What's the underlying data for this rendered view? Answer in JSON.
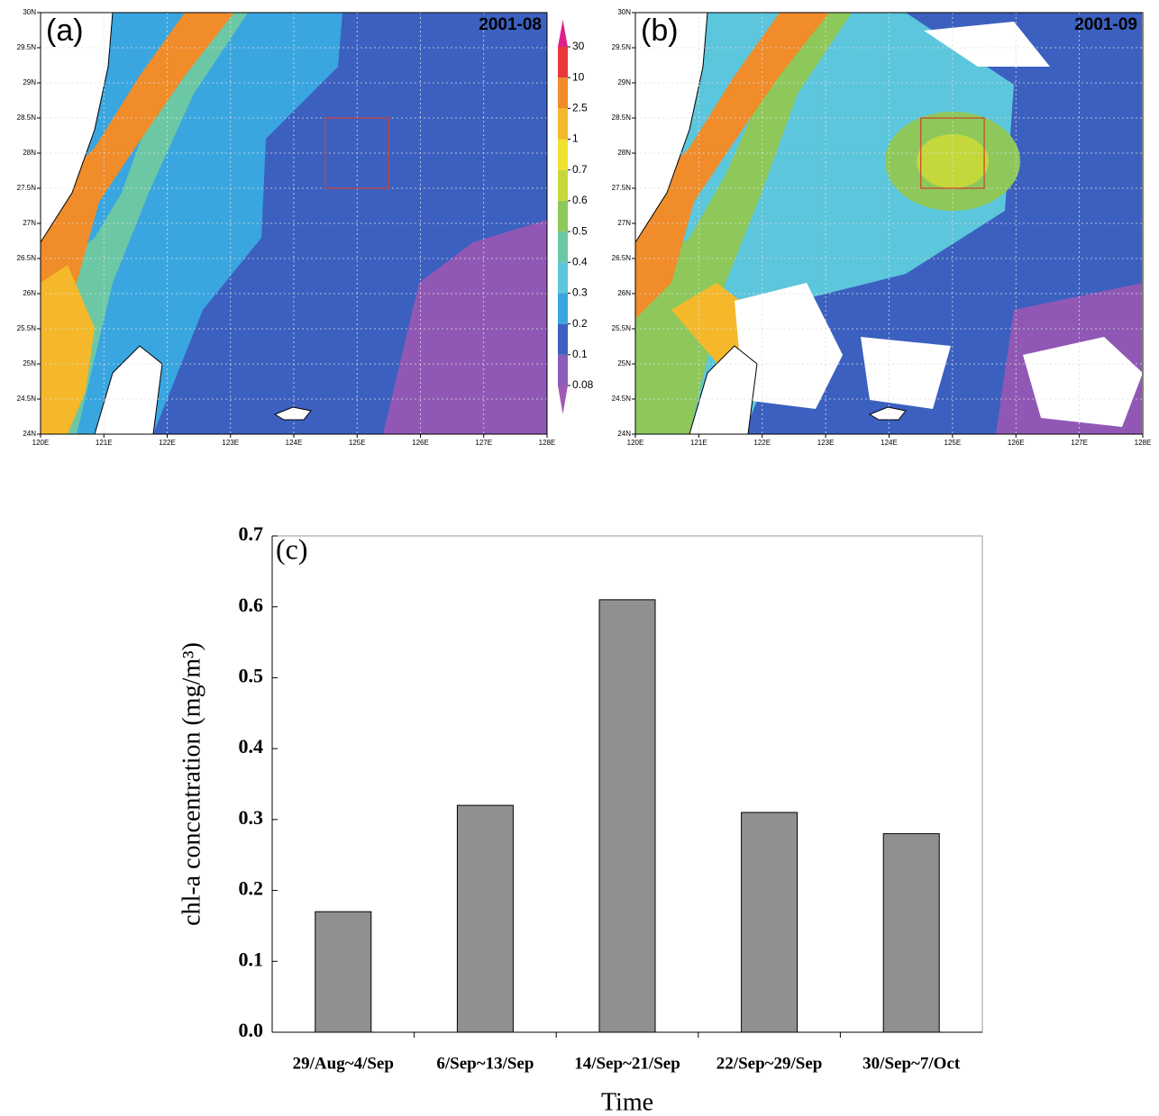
{
  "chart_data": [
    {
      "type": "map",
      "panel": "(a)",
      "date": "2001-08",
      "xlim": [
        120,
        128
      ],
      "ylim": [
        24,
        30
      ],
      "xticks": [
        {
          "value": 120,
          "label": "120E"
        },
        {
          "value": 121,
          "label": "121E"
        },
        {
          "value": 122,
          "label": "122E"
        },
        {
          "value": 123,
          "label": "123E"
        },
        {
          "value": 124,
          "label": "124E"
        },
        {
          "value": 125,
          "label": "125E"
        },
        {
          "value": 126,
          "label": "126E"
        },
        {
          "value": 127,
          "label": "127E"
        },
        {
          "value": 128,
          "label": "128E"
        }
      ],
      "yticks": [
        {
          "value": 24,
          "label": "24N"
        },
        {
          "value": 24.5,
          "label": "24.5N"
        },
        {
          "value": 25,
          "label": "25N"
        },
        {
          "value": 25.5,
          "label": "25.5N"
        },
        {
          "value": 26,
          "label": "26N"
        },
        {
          "value": 26.5,
          "label": "26.5N"
        },
        {
          "value": 27,
          "label": "27N"
        },
        {
          "value": 27.5,
          "label": "27.5N"
        },
        {
          "value": 28,
          "label": "28N"
        },
        {
          "value": 28.5,
          "label": "28.5N"
        },
        {
          "value": 29,
          "label": "29N"
        },
        {
          "value": 29.5,
          "label": "29.5N"
        },
        {
          "value": 30,
          "label": "30N"
        }
      ],
      "grid": true,
      "box": {
        "lon": [
          124.5,
          125.5
        ],
        "lat": [
          27.5,
          28.5
        ],
        "color": "#d04030"
      },
      "colorbar": {
        "levels": [
          0.08,
          0.1,
          0.2,
          0.3,
          0.4,
          0.5,
          0.6,
          0.7,
          1,
          2.5,
          10,
          30
        ],
        "colors": [
          "#a05ab4",
          "#8c5cb8",
          "#3c60c0",
          "#3aa6e0",
          "#5cc6dc",
          "#6cc8a4",
          "#8ec85a",
          "#c4d83c",
          "#f0e030",
          "#f5b82a",
          "#f08c2a",
          "#e8383c",
          "#e0208c"
        ]
      }
    },
    {
      "type": "map",
      "panel": "(b)",
      "date": "2001-09",
      "xlim": [
        120,
        128
      ],
      "ylim": [
        24,
        30
      ],
      "xticks": [
        {
          "value": 120,
          "label": "120E"
        },
        {
          "value": 121,
          "label": "121E"
        },
        {
          "value": 122,
          "label": "122E"
        },
        {
          "value": 123,
          "label": "123E"
        },
        {
          "value": 124,
          "label": "124E"
        },
        {
          "value": 125,
          "label": "125E"
        },
        {
          "value": 126,
          "label": "126E"
        },
        {
          "value": 127,
          "label": "127E"
        },
        {
          "value": 128,
          "label": "128E"
        }
      ],
      "yticks": [
        {
          "value": 24,
          "label": "24N"
        },
        {
          "value": 24.5,
          "label": "24.5N"
        },
        {
          "value": 25,
          "label": "25N"
        },
        {
          "value": 25.5,
          "label": "25.5N"
        },
        {
          "value": 26,
          "label": "26N"
        },
        {
          "value": 26.5,
          "label": "26.5N"
        },
        {
          "value": 27,
          "label": "27N"
        },
        {
          "value": 27.5,
          "label": "27.5N"
        },
        {
          "value": 28,
          "label": "28N"
        },
        {
          "value": 28.5,
          "label": "28.5N"
        },
        {
          "value": 29,
          "label": "29N"
        },
        {
          "value": 29.5,
          "label": "29.5N"
        },
        {
          "value": 30,
          "label": "30N"
        }
      ],
      "grid": true,
      "box": {
        "lon": [
          124.5,
          125.5
        ],
        "lat": [
          27.5,
          28.5
        ],
        "color": "#d04030"
      }
    },
    {
      "type": "bar",
      "panel": "(c)",
      "categories": [
        "29/Aug~4/Sep",
        "6/Sep~13/Sep",
        "14/Sep~21/Sep",
        "22/Sep~29/Sep",
        "30/Sep~7/Oct"
      ],
      "values": [
        0.17,
        0.32,
        0.61,
        0.31,
        0.28
      ],
      "color": "#909090",
      "ylim": [
        0,
        0.7
      ],
      "yticks": [
        {
          "value": 0,
          "label": "0.0"
        },
        0.1,
        0.2,
        0.3,
        0.4,
        0.5,
        0.6,
        0.7
      ],
      "y_label": "chl-a concentration (mg/m³)",
      "x_label": "Time"
    }
  ]
}
